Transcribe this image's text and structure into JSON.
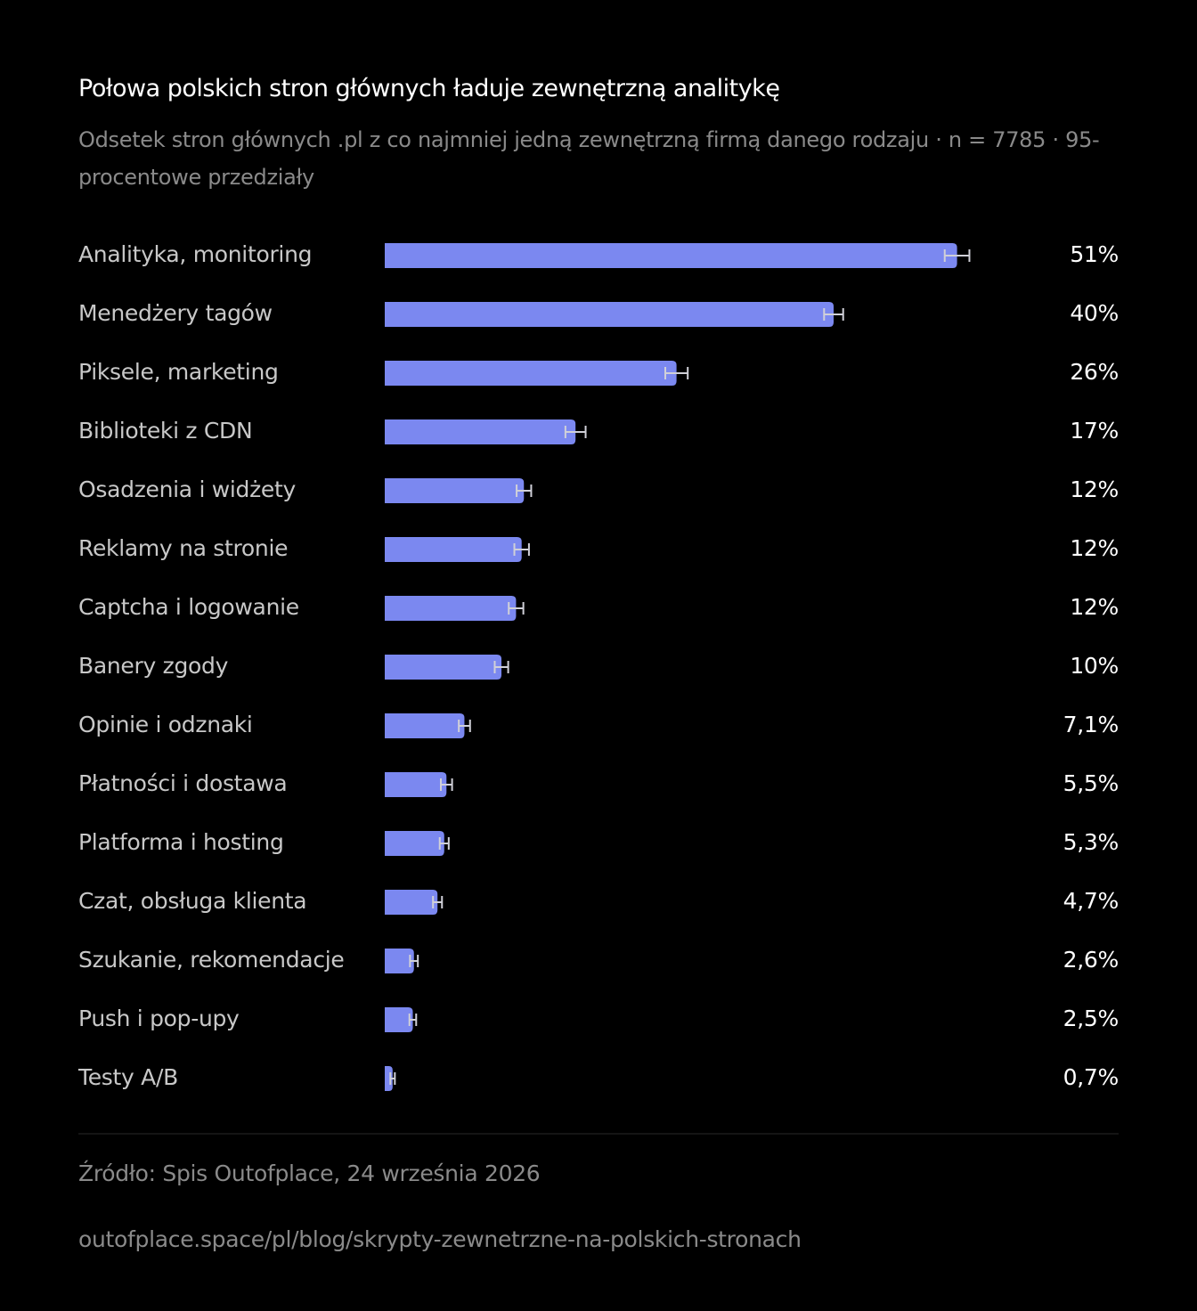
{
  "chart_data": {
    "type": "barh",
    "title": "Połowa polskich stron głównych ładuje zewnętrzną analitykę",
    "subtitle": "Odsetek stron głównych .pl z co najmniej jedną zewnętrzną firmą danego rodzaju · n = 7785 · 95-procentowe przedziały",
    "categories": [
      "Analityka, monitoring",
      "Menedżery tagów",
      "Piksele, marketing",
      "Biblioteki z CDN",
      "Osadzenia i widżety",
      "Reklamy na stronie",
      "Captcha i logowanie",
      "Banery zgody",
      "Opinie i odznaki",
      "Płatności i dostawa",
      "Platforma i hosting",
      "Czat, obsługa klienta",
      "Szukanie, rekomendacje",
      "Push i pop-upy",
      "Testy A/B"
    ],
    "values": [
      51,
      40,
      26,
      17,
      12.4,
      12.2,
      11.7,
      10.4,
      7.1,
      5.5,
      5.3,
      4.7,
      2.6,
      2.5,
      0.7
    ],
    "value_labels": [
      "51%",
      "40%",
      "26%",
      "17%",
      "12%",
      "12%",
      "12%",
      "10%",
      "7,1%",
      "5,5%",
      "5,3%",
      "4,7%",
      "2,6%",
      "2,5%",
      "0,7%"
    ],
    "errors": [
      1.1,
      0.85,
      1.0,
      0.9,
      0.65,
      0.65,
      0.65,
      0.6,
      0.5,
      0.5,
      0.4,
      0.4,
      0.35,
      0.3,
      0.2
    ],
    "color": "#7b88f0",
    "error_color": "#d0d0d8",
    "xlim": [
      0,
      60
    ]
  },
  "footer": {
    "source": "Źródło: Spis Outofplace, 24 września 2026",
    "url": "outofplace.space/pl/blog/skrypty-zewnetrzne-na-polskich-stronach"
  }
}
